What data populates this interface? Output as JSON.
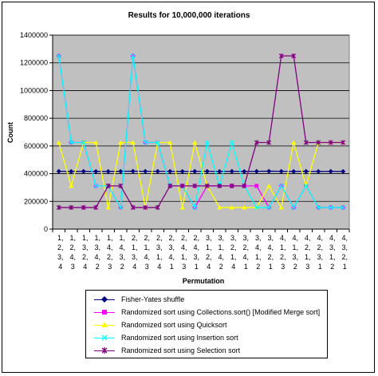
{
  "chart_data": {
    "type": "line",
    "title": "Results for 10,000,000 iterations",
    "xlabel": "Permutation",
    "ylabel": "Count",
    "ylim": [
      0,
      1400000
    ],
    "yticks": [
      0,
      200000,
      400000,
      600000,
      800000,
      1000000,
      1200000,
      1400000
    ],
    "ytick_labels": [
      "0",
      "200000",
      "400000",
      "600000",
      "800000",
      "1000000",
      "1200000",
      "1400000"
    ],
    "grid": true,
    "legend_position": "bottom",
    "categories": [
      [
        "1,",
        "2,",
        "3,",
        "4"
      ],
      [
        "1,",
        "2,",
        "4,",
        "3"
      ],
      [
        "1,",
        "3,",
        "2,",
        "4"
      ],
      [
        "1,",
        "3,",
        "4,",
        "2"
      ],
      [
        "1,",
        "4,",
        "2,",
        "3"
      ],
      [
        "1,",
        "4,",
        "3,",
        "2"
      ],
      [
        "2,",
        "1,",
        "3,",
        "4"
      ],
      [
        "2,",
        "1,",
        "4,",
        "3"
      ],
      [
        "2,",
        "3,",
        "1,",
        "4"
      ],
      [
        "2,",
        "3,",
        "4,",
        "1"
      ],
      [
        "2,",
        "4,",
        "1,",
        "3"
      ],
      [
        "2,",
        "4,",
        "3,",
        "1"
      ],
      [
        "3,",
        "1,",
        "2,",
        "4"
      ],
      [
        "3,",
        "1,",
        "4,",
        "2"
      ],
      [
        "3,",
        "2,",
        "1,",
        "4"
      ],
      [
        "3,",
        "2,",
        "4,",
        "1"
      ],
      [
        "3,",
        "4,",
        "1,",
        "2"
      ],
      [
        "3,",
        "4,",
        "2,",
        "1"
      ],
      [
        "4,",
        "1,",
        "2,",
        "3"
      ],
      [
        "4,",
        "1,",
        "3,",
        "2"
      ],
      [
        "4,",
        "2,",
        "1,",
        "3"
      ],
      [
        "4,",
        "2,",
        "3,",
        "1"
      ],
      [
        "4,",
        "3,",
        "1,",
        "2"
      ],
      [
        "4,",
        "3,",
        "2,",
        "1"
      ]
    ],
    "series": [
      {
        "name": "Fisher-Yates shuffle",
        "color": "#000080",
        "marker": "diamond",
        "values": [
          417000,
          416000,
          417000,
          416000,
          416000,
          417000,
          418000,
          417000,
          417000,
          417000,
          416000,
          417000,
          417000,
          416000,
          417000,
          416000,
          417000,
          418000,
          417000,
          416000,
          417000,
          416000,
          417000,
          416000
        ]
      },
      {
        "name": "Randomized sort using Collections.sort() [Modified Merge sort]",
        "color": "#FF00FF",
        "marker": "square",
        "values": [
          1250000,
          625000,
          625000,
          312000,
          312000,
          156000,
          1250000,
          625000,
          625000,
          312000,
          312000,
          156000,
          312000,
          312000,
          312000,
          312000,
          312000,
          156000,
          312000,
          156000,
          312000,
          156000,
          156000,
          156000
        ]
      },
      {
        "name": "Randomized sort using Quicksort",
        "color": "#FFFF00",
        "marker": "triangle",
        "values": [
          625000,
          312000,
          625000,
          625000,
          156000,
          625000,
          625000,
          156000,
          625000,
          625000,
          156000,
          625000,
          312000,
          156000,
          156000,
          156000,
          156000,
          312000,
          156000,
          625000,
          312000,
          625000,
          625000,
          625000
        ]
      },
      {
        "name": "Randomized sort using Insertion sort",
        "color": "#00FFFF",
        "marker": "x",
        "values": [
          1250000,
          625000,
          625000,
          312000,
          312000,
          156000,
          1250000,
          625000,
          625000,
          312000,
          312000,
          156000,
          625000,
          312000,
          625000,
          312000,
          156000,
          156000,
          312000,
          156000,
          312000,
          156000,
          156000,
          156000
        ]
      },
      {
        "name": "Randomized sort using Selection sort",
        "color": "#800080",
        "marker": "star",
        "values": [
          156000,
          156000,
          156000,
          156000,
          312000,
          312000,
          156000,
          156000,
          156000,
          312000,
          312000,
          312000,
          312000,
          312000,
          312000,
          312000,
          625000,
          625000,
          1250000,
          1250000,
          625000,
          625000,
          625000,
          625000
        ]
      }
    ]
  }
}
